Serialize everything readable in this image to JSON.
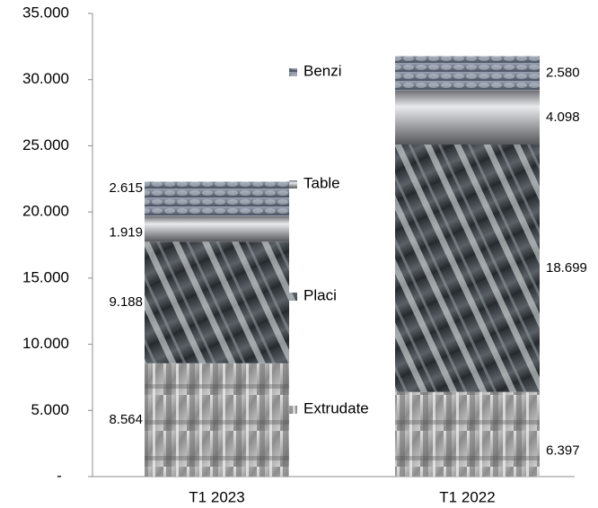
{
  "chart_data": {
    "type": "bar",
    "stacked": true,
    "categories": [
      "T1 2023",
      "T1 2022"
    ],
    "series": [
      {
        "name": "Extrudate",
        "values": [
          8564,
          6397
        ],
        "color": "#9a9a9a"
      },
      {
        "name": "Placi",
        "values": [
          9188,
          18699
        ],
        "color": "#4f5558"
      },
      {
        "name": "Table",
        "values": [
          1919,
          4098
        ],
        "color": "#b9babc"
      },
      {
        "name": "Benzi",
        "values": [
          2615,
          2580
        ],
        "color": "#7d8593"
      }
    ],
    "data_labels": [
      [
        "8.564",
        "6.397"
      ],
      [
        "9.188",
        "18.699"
      ],
      [
        "1.919",
        "4.098"
      ],
      [
        "2.615",
        "2.580"
      ]
    ],
    "y_ticks": [
      0,
      5000,
      10000,
      15000,
      20000,
      25000,
      30000,
      35000
    ],
    "y_tick_labels": [
      "-",
      "5.000",
      "10.000",
      "15.000",
      "20.000",
      "25.000",
      "30.000",
      "35.000"
    ],
    "ylim": [
      0,
      35000
    ],
    "legend_position": "between bars",
    "grid": false
  }
}
